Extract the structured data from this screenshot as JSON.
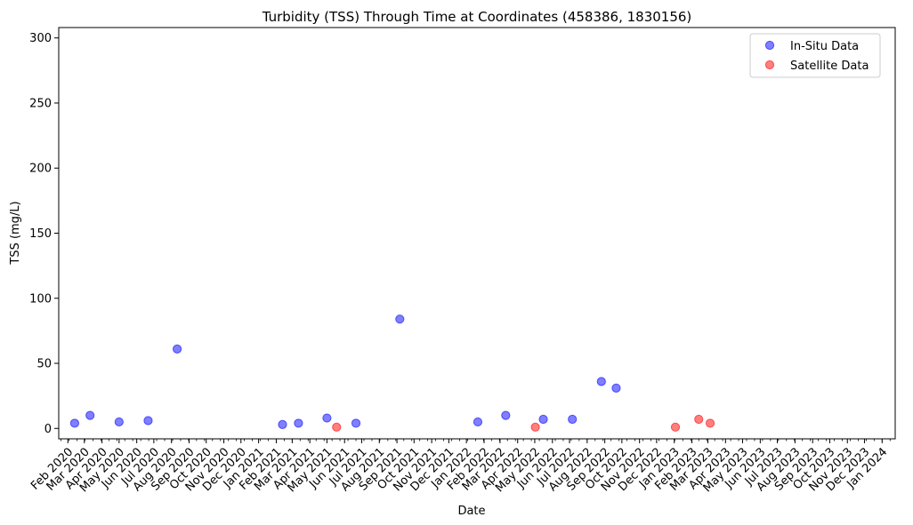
{
  "chart_data": {
    "type": "scatter",
    "title": "Turbidity (TSS) Through Time at Coordinates (458386, 1830156)",
    "xlabel": "Date",
    "ylabel": "TSS (mg/L)",
    "ylim": [
      -8,
      308
    ],
    "y_ticks": [
      0,
      50,
      100,
      150,
      200,
      250,
      300
    ],
    "xlim": [
      "2020-01-16",
      "2024-01-24"
    ],
    "x_tick_labels": [
      "Feb 2020",
      "Mar 2020",
      "Apr 2020",
      "May 2020",
      "Jun 2020",
      "Jul 2020",
      "Aug 2020",
      "Sep 2020",
      "Oct 2020",
      "Nov 2020",
      "Dec 2020",
      "Jan 2021",
      "Feb 2021",
      "Mar 2021",
      "Apr 2021",
      "May 2021",
      "Jun 2021",
      "Jul 2021",
      "Aug 2021",
      "Sep 2021",
      "Oct 2021",
      "Nov 2021",
      "Dec 2021",
      "Jan 2022",
      "Feb 2022",
      "Mar 2022",
      "Apr 2022",
      "May 2022",
      "Jun 2022",
      "Jul 2022",
      "Aug 2022",
      "Sep 2022",
      "Oct 2022",
      "Nov 2022",
      "Dec 2022",
      "Jan 2023",
      "Feb 2023",
      "Mar 2023",
      "Apr 2023",
      "May 2023",
      "Jun 2023",
      "Jul 2023",
      "Aug 2023",
      "Sep 2023",
      "Oct 2023",
      "Nov 2023",
      "Dec 2023",
      "Jan 2024"
    ],
    "x_ticks": [
      "2020-02-01",
      "2020-03-01",
      "2020-04-01",
      "2020-05-01",
      "2020-06-01",
      "2020-07-01",
      "2020-08-01",
      "2020-09-01",
      "2020-10-01",
      "2020-11-01",
      "2020-12-01",
      "2021-01-01",
      "2021-02-01",
      "2021-03-01",
      "2021-04-01",
      "2021-05-01",
      "2021-06-01",
      "2021-07-01",
      "2021-08-01",
      "2021-09-01",
      "2021-10-01",
      "2021-11-01",
      "2021-12-01",
      "2022-01-01",
      "2022-02-01",
      "2022-03-01",
      "2022-04-01",
      "2022-05-01",
      "2022-06-01",
      "2022-07-01",
      "2022-08-01",
      "2022-09-01",
      "2022-10-01",
      "2022-11-01",
      "2022-12-01",
      "2023-01-01",
      "2023-02-01",
      "2023-03-01",
      "2023-04-01",
      "2023-05-01",
      "2023-06-01",
      "2023-07-01",
      "2023-08-01",
      "2023-09-01",
      "2023-10-01",
      "2023-11-01",
      "2023-12-01",
      "2024-01-01"
    ],
    "legend_position": "top-right",
    "grid": false,
    "series": [
      {
        "name": "In-Situ Data",
        "color": "#0000ff",
        "points": [
          {
            "x": "2020-02-13",
            "y": 4
          },
          {
            "x": "2020-03-11",
            "y": 10
          },
          {
            "x": "2020-05-01",
            "y": 5
          },
          {
            "x": "2020-06-21",
            "y": 6
          },
          {
            "x": "2020-08-11",
            "y": 61
          },
          {
            "x": "2021-02-12",
            "y": 3
          },
          {
            "x": "2021-03-12",
            "y": 4
          },
          {
            "x": "2021-05-01",
            "y": 8
          },
          {
            "x": "2021-06-21",
            "y": 4
          },
          {
            "x": "2021-09-06",
            "y": 84
          },
          {
            "x": "2022-01-21",
            "y": 5
          },
          {
            "x": "2022-03-11",
            "y": 10
          },
          {
            "x": "2022-05-16",
            "y": 7
          },
          {
            "x": "2022-07-06",
            "y": 7
          },
          {
            "x": "2022-08-26",
            "y": 36
          },
          {
            "x": "2022-09-21",
            "y": 31
          }
        ]
      },
      {
        "name": "Satellite Data",
        "color": "#ff0000",
        "points": [
          {
            "x": "2021-05-18",
            "y": 1
          },
          {
            "x": "2022-05-02",
            "y": 1
          },
          {
            "x": "2023-01-03",
            "y": 1
          },
          {
            "x": "2023-02-13",
            "y": 7
          },
          {
            "x": "2023-03-05",
            "y": 4
          }
        ]
      }
    ]
  }
}
